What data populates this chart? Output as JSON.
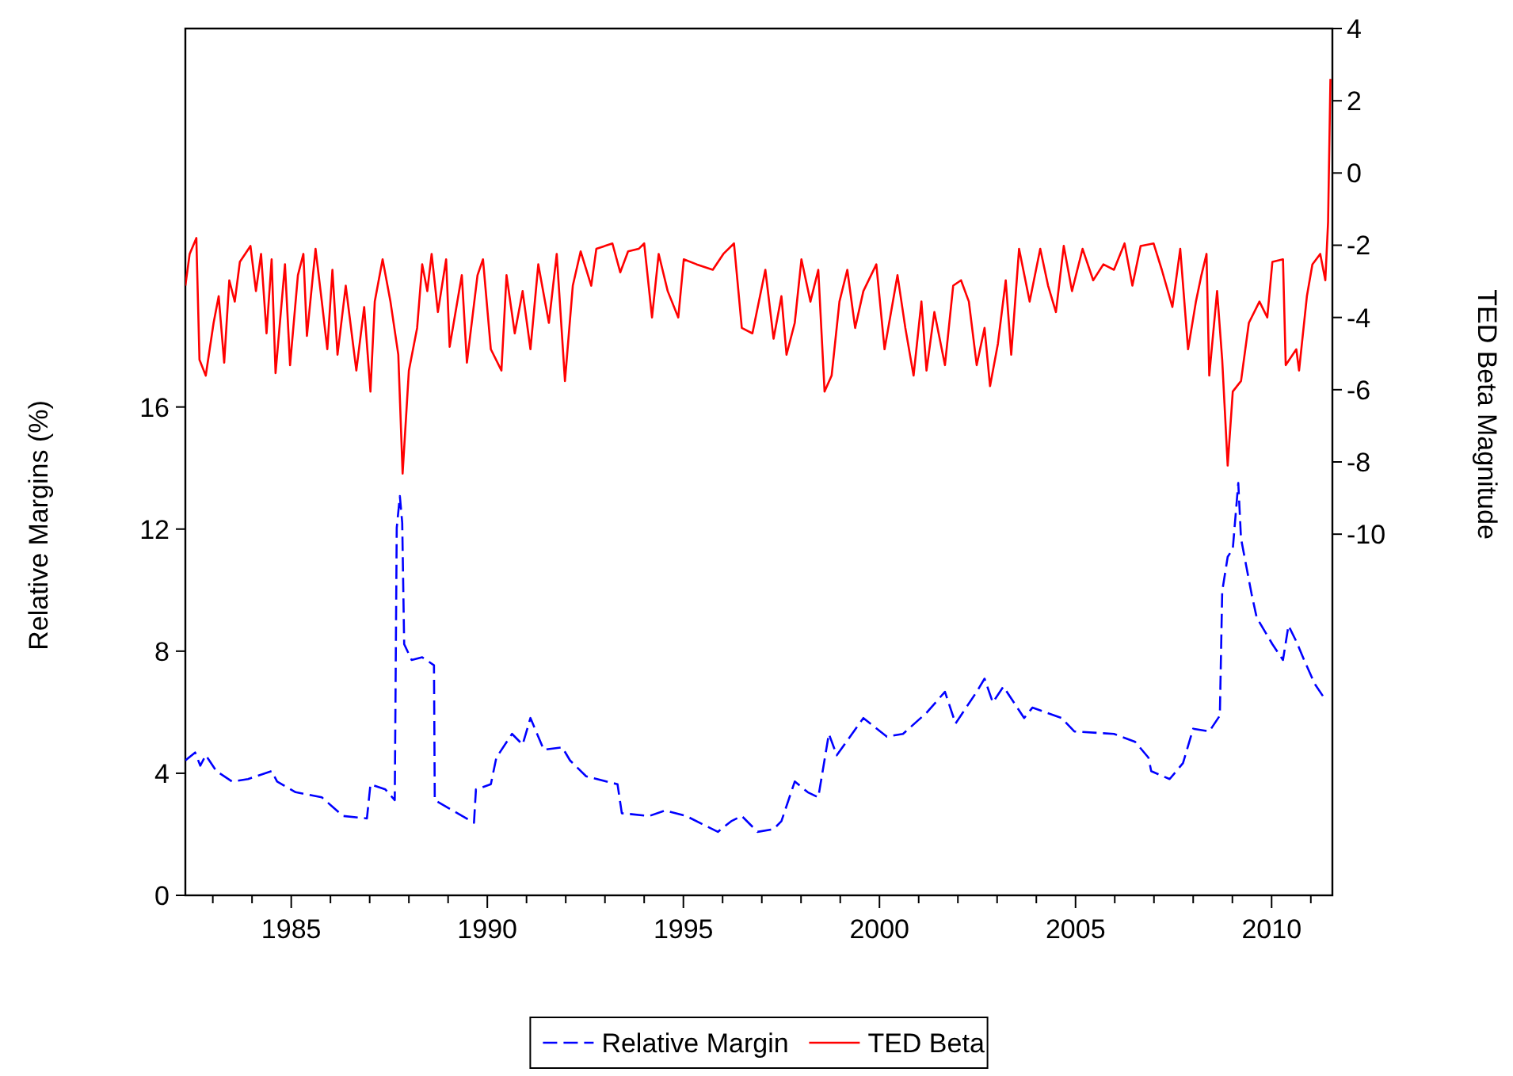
{
  "chart_data": {
    "type": "line",
    "ylabel": "Relative Margins (%)",
    "y2label": "TED Beta Magnitude",
    "xlim": [
      1982.3,
      2011.55
    ],
    "xticks": [
      {
        "value": 1983,
        "label": null
      },
      {
        "value": 1984,
        "label": null
      },
      1985,
      {
        "value": 1986,
        "label": null
      },
      {
        "value": 1987,
        "label": null
      },
      {
        "value": 1988,
        "label": null
      },
      {
        "value": 1989,
        "label": null
      },
      1990,
      {
        "value": 1991,
        "label": null
      },
      {
        "value": 1992,
        "label": null
      },
      {
        "value": 1993,
        "label": null
      },
      {
        "value": 1994,
        "label": null
      },
      1995,
      {
        "value": 1996,
        "label": null
      },
      {
        "value": 1997,
        "label": null
      },
      {
        "value": 1998,
        "label": null
      },
      {
        "value": 1999,
        "label": null
      },
      2000,
      {
        "value": 2001,
        "label": null
      },
      {
        "value": 2002,
        "label": null
      },
      {
        "value": 2003,
        "label": null
      },
      {
        "value": 2004,
        "label": null
      },
      2005,
      {
        "value": 2006,
        "label": null
      },
      {
        "value": 2007,
        "label": null
      },
      {
        "value": 2008,
        "label": null
      },
      {
        "value": 2009,
        "label": null
      },
      2010,
      {
        "value": 2011,
        "label": null
      }
    ],
    "ylim": [
      0,
      28.4
    ],
    "yticks": [
      0,
      4,
      8,
      12,
      16
    ],
    "y2lim": [
      -20,
      4
    ],
    "y2ticks": [
      -10,
      -8,
      -6,
      -4,
      -2,
      0,
      2,
      4
    ],
    "grid": false,
    "legend": "bottom",
    "marker": "none",
    "series": [
      {
        "name": "Relative Margin",
        "color": "#0000ff",
        "line_style": "dashed",
        "x": [
          1982.3,
          1982.55,
          1982.68,
          1982.82,
          1983.09,
          1983.49,
          1983.9,
          1984.5,
          1984.64,
          1985.11,
          1985.78,
          1986.32,
          1986.93,
          1987.02,
          1987.4,
          1987.64,
          1987.69,
          1987.77,
          1987.83,
          1987.88,
          1988.07,
          1988.34,
          1988.64,
          1988.66,
          1989.01,
          1989.66,
          1989.71,
          1990.09,
          1990.23,
          1990.63,
          1990.9,
          1991.1,
          1991.44,
          1991.91,
          1992.11,
          1992.52,
          1993.32,
          1993.43,
          1994.13,
          1994.53,
          1995.07,
          1995.88,
          1996.22,
          1996.49,
          1996.89,
          1997.3,
          1997.5,
          1997.84,
          1998.17,
          1998.44,
          1998.71,
          1998.91,
          1999.59,
          2000.19,
          2000.6,
          2001.2,
          2001.67,
          2001.94,
          2002.48,
          2002.68,
          2002.89,
          2003.16,
          2003.69,
          2003.9,
          2004.64,
          2004.97,
          2005.98,
          2006.52,
          2006.86,
          2006.93,
          2007.4,
          2007.74,
          2008.0,
          2008.41,
          2008.68,
          2008.74,
          2008.88,
          2009.01,
          2009.15,
          2009.22,
          2009.49,
          2009.62,
          2010.02,
          2010.29,
          2010.43,
          2010.63,
          2010.83,
          2011.1,
          2011.37
        ],
        "values": [
          4.42,
          4.68,
          4.25,
          4.59,
          4.07,
          3.73,
          3.81,
          4.07,
          3.73,
          3.38,
          3.21,
          2.6,
          2.52,
          3.64,
          3.47,
          3.12,
          12.04,
          13.08,
          12.21,
          8.23,
          7.71,
          7.8,
          7.54,
          3.12,
          2.86,
          2.38,
          3.47,
          3.64,
          4.51,
          5.29,
          4.94,
          5.81,
          4.77,
          4.85,
          4.42,
          3.9,
          3.64,
          2.69,
          2.6,
          2.78,
          2.6,
          2.08,
          2.43,
          2.6,
          2.08,
          2.17,
          2.43,
          3.73,
          3.38,
          3.21,
          5.29,
          4.59,
          5.81,
          5.2,
          5.29,
          5.98,
          6.67,
          5.63,
          6.67,
          7.1,
          6.32,
          6.84,
          5.81,
          6.15,
          5.81,
          5.37,
          5.29,
          5.03,
          4.51,
          4.07,
          3.81,
          4.33,
          5.46,
          5.37,
          5.89,
          9.96,
          11.09,
          11.35,
          13.51,
          11.69,
          9.87,
          9.1,
          8.23,
          7.71,
          8.84,
          8.32,
          7.71,
          6.93,
          6.41
        ]
      },
      {
        "name": "TED Beta",
        "color": "#ff0000",
        "line_style": "solid",
        "axis": "y2",
        "x": [
          1982.3,
          1982.41,
          1982.58,
          1982.66,
          1982.82,
          1983.02,
          1983.15,
          1983.29,
          1983.42,
          1983.56,
          1983.69,
          1983.96,
          1984.1,
          1984.23,
          1984.37,
          1984.5,
          1984.6,
          1984.84,
          1984.97,
          1985.17,
          1985.31,
          1985.4,
          1985.62,
          1985.78,
          1985.92,
          1986.05,
          1986.18,
          1986.39,
          1986.66,
          1986.86,
          1987.02,
          1987.13,
          1987.33,
          1987.53,
          1987.73,
          1987.84,
          1988.0,
          1988.21,
          1988.34,
          1988.47,
          1988.58,
          1988.74,
          1988.95,
          1989.04,
          1989.35,
          1989.48,
          1989.75,
          1989.89,
          1990.09,
          1990.36,
          1990.49,
          1990.7,
          1990.9,
          1991.1,
          1991.3,
          1991.57,
          1991.77,
          1991.98,
          1992.18,
          1992.38,
          1992.65,
          1992.78,
          1993.19,
          1993.39,
          1993.59,
          1993.86,
          1994.0,
          1994.2,
          1994.37,
          1994.6,
          1994.87,
          1995.01,
          1995.34,
          1995.75,
          1996.02,
          1996.29,
          1996.49,
          1996.76,
          1997.09,
          1997.3,
          1997.5,
          1997.63,
          1997.84,
          1998.01,
          1998.24,
          1998.44,
          1998.6,
          1998.78,
          1998.98,
          1999.18,
          1999.38,
          1999.59,
          1999.92,
          2000.13,
          2000.46,
          2000.66,
          2000.87,
          2001.07,
          2001.2,
          2001.4,
          2001.67,
          2001.88,
          2002.08,
          2002.28,
          2002.48,
          2002.68,
          2002.82,
          2003.02,
          2003.22,
          2003.36,
          2003.56,
          2003.83,
          2004.1,
          2004.3,
          2004.5,
          2004.7,
          2004.91,
          2005.18,
          2005.45,
          2005.71,
          2005.98,
          2006.25,
          2006.45,
          2006.66,
          2006.99,
          2007.2,
          2007.47,
          2007.67,
          2007.87,
          2008.07,
          2008.21,
          2008.34,
          2008.41,
          2008.61,
          2008.74,
          2008.88,
          2009.01,
          2009.22,
          2009.42,
          2009.69,
          2009.89,
          2010.02,
          2010.29,
          2010.36,
          2010.63,
          2010.7,
          2010.9,
          2011.04,
          2011.24,
          2011.37,
          2011.44,
          2011.5
        ],
        "values": [
          -3.12,
          -2.24,
          -1.8,
          -5.17,
          -5.61,
          -4.15,
          -3.41,
          -5.25,
          -2.97,
          -3.56,
          -2.46,
          -2.02,
          -3.27,
          -2.24,
          -4.44,
          -2.39,
          -5.54,
          -2.53,
          -5.32,
          -2.83,
          -2.24,
          -4.51,
          -2.1,
          -3.56,
          -4.88,
          -2.68,
          -5.03,
          -3.12,
          -5.47,
          -3.71,
          -6.05,
          -3.56,
          -2.39,
          -3.56,
          -5.03,
          -8.32,
          -5.47,
          -4.29,
          -2.53,
          -3.27,
          -2.24,
          -3.85,
          -2.39,
          -4.81,
          -2.83,
          -5.25,
          -2.83,
          -2.39,
          -4.88,
          -5.47,
          -2.83,
          -4.44,
          -3.27,
          -4.88,
          -2.53,
          -4.15,
          -2.24,
          -5.76,
          -3.12,
          -2.17,
          -3.12,
          -2.1,
          -1.95,
          -2.75,
          -2.17,
          -2.1,
          -1.95,
          -4.0,
          -2.24,
          -3.27,
          -4.0,
          -2.39,
          -2.53,
          -2.68,
          -2.24,
          -1.95,
          -4.29,
          -4.44,
          -2.68,
          -4.59,
          -3.41,
          -5.03,
          -4.15,
          -2.39,
          -3.56,
          -2.68,
          -6.05,
          -5.61,
          -3.56,
          -2.68,
          -4.29,
          -3.27,
          -2.53,
          -4.88,
          -2.83,
          -4.29,
          -5.61,
          -3.56,
          -5.47,
          -3.85,
          -5.32,
          -3.12,
          -2.97,
          -3.56,
          -5.32,
          -4.29,
          -5.9,
          -4.73,
          -2.97,
          -5.03,
          -2.1,
          -3.56,
          -2.1,
          -3.12,
          -3.85,
          -2.02,
          -3.27,
          -2.1,
          -2.97,
          -2.53,
          -2.68,
          -1.95,
          -3.12,
          -2.02,
          -1.95,
          -2.68,
          -3.71,
          -2.1,
          -4.88,
          -3.56,
          -2.83,
          -2.24,
          -5.61,
          -3.27,
          -5.17,
          -8.1,
          -6.05,
          -5.76,
          -4.15,
          -3.56,
          -4.0,
          -2.46,
          -2.39,
          -5.32,
          -4.88,
          -5.47,
          -3.41,
          -2.53,
          -2.24,
          -2.97,
          -1.36,
          2.6
        ]
      }
    ]
  }
}
